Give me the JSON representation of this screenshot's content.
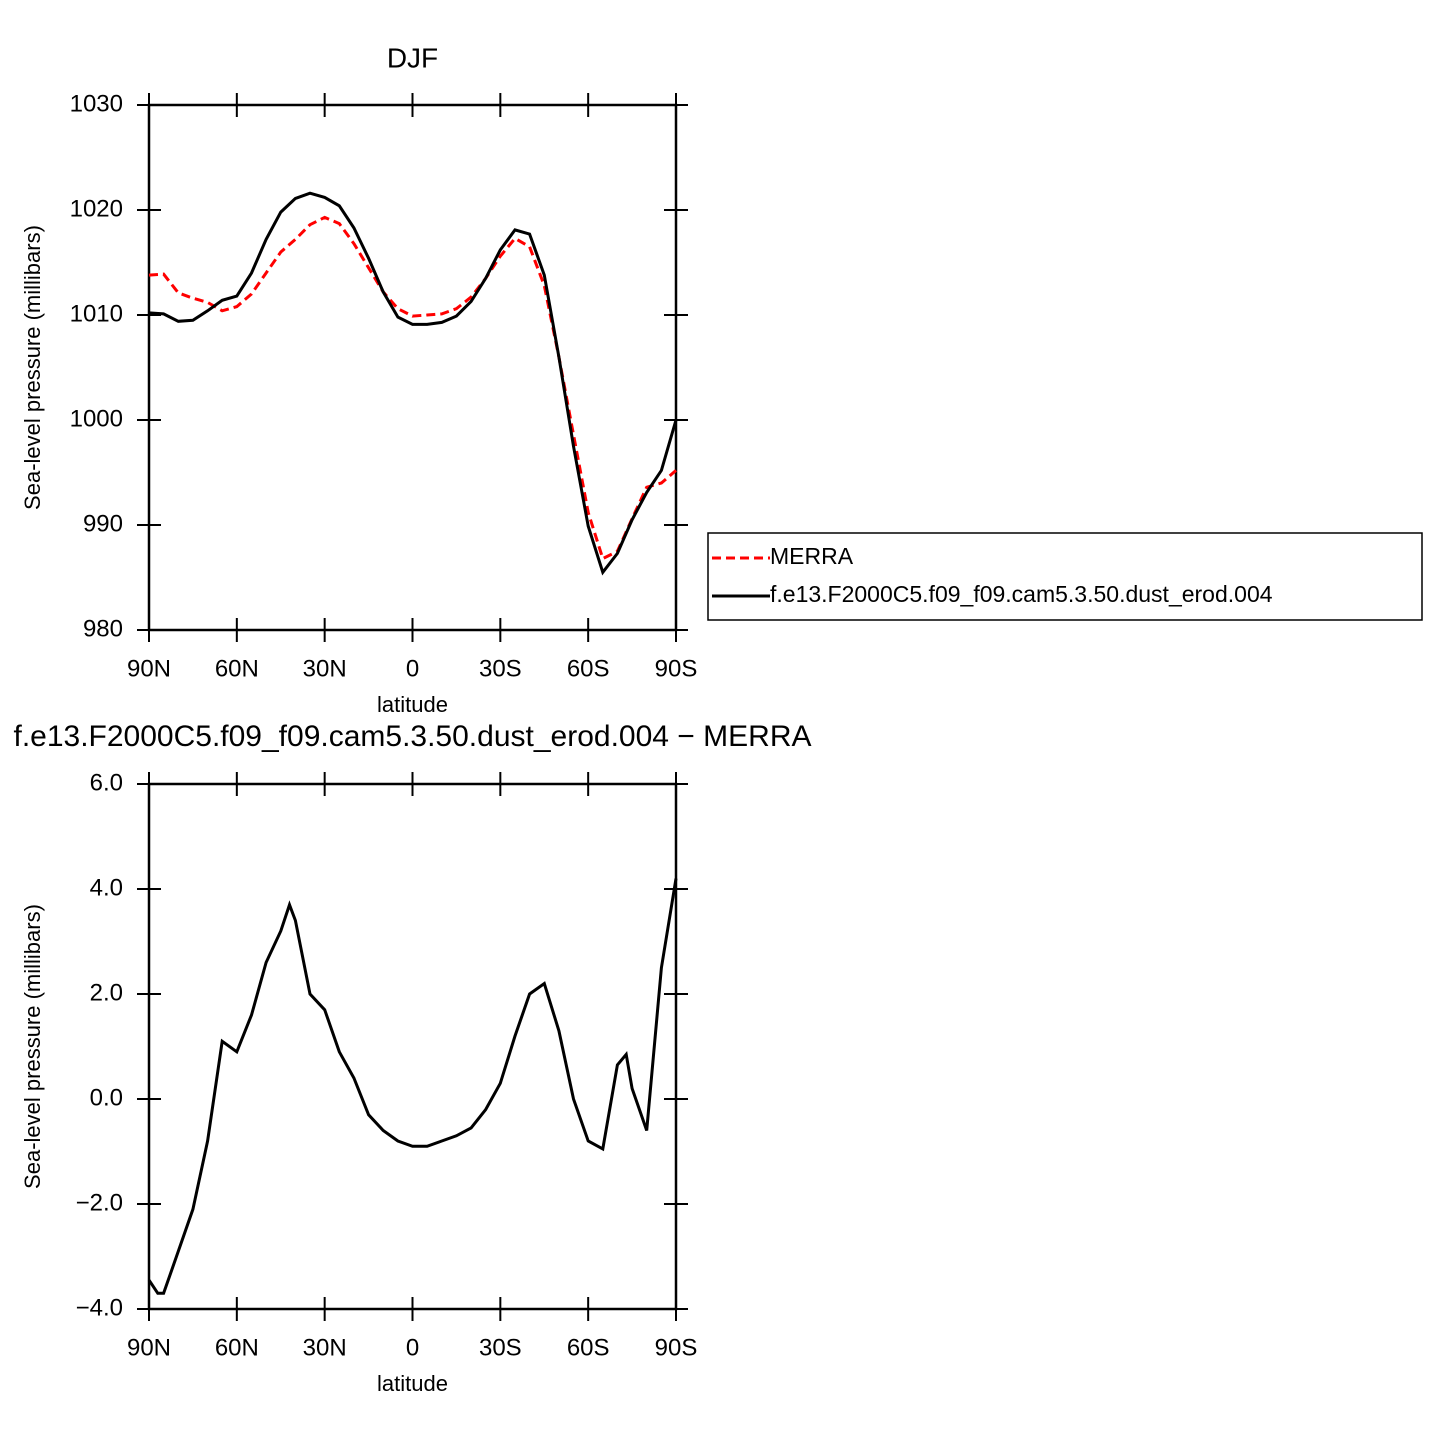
{
  "chart_data": [
    {
      "type": "line",
      "title": "DJF",
      "xlabel": "latitude",
      "ylabel": "Sea-level pressure (millibars)",
      "x": [
        90,
        85,
        80,
        75,
        70,
        65,
        60,
        55,
        50,
        45,
        40,
        35,
        30,
        25,
        20,
        15,
        10,
        5,
        0,
        -5,
        -10,
        -15,
        -20,
        -25,
        -30,
        -35,
        -40,
        -45,
        -50,
        -55,
        -60,
        -65,
        -70,
        -75,
        -80,
        -85,
        -90
      ],
      "series": [
        {
          "name": "MERRA",
          "color": "#ff0000",
          "style": "dashed",
          "values": [
            1013.8,
            1013.9,
            1012.1,
            1011.6,
            1011.2,
            1010.4,
            1010.8,
            1012.0,
            1014.0,
            1016.0,
            1017.2,
            1018.6,
            1019.3,
            1018.7,
            1016.8,
            1014.5,
            1012.2,
            1010.6,
            1009.9,
            1010.0,
            1010.1,
            1010.6,
            1011.7,
            1013.5,
            1015.6,
            1017.3,
            1016.5,
            1012.8,
            1006.0,
            998.6,
            991.2,
            986.8,
            987.5,
            990.6,
            993.6,
            994.0,
            995.2
          ]
        },
        {
          "name": "f.e13.F2000C5.f09_f09.cam5.3.50.dust_erod.004",
          "color": "#000000",
          "style": "solid",
          "values": [
            1010.2,
            1010.1,
            1009.4,
            1009.5,
            1010.4,
            1011.4,
            1011.8,
            1014.0,
            1017.2,
            1019.8,
            1021.1,
            1021.6,
            1021.2,
            1020.4,
            1018.3,
            1015.4,
            1012.2,
            1009.8,
            1009.1,
            1009.1,
            1009.3,
            1009.9,
            1011.3,
            1013.5,
            1016.2,
            1018.1,
            1017.7,
            1013.8,
            1006.0,
            997.5,
            989.9,
            985.5,
            987.3,
            990.5,
            993.1,
            995.2,
            1000.0
          ]
        }
      ],
      "xlim": [
        90,
        -90
      ],
      "xticks": [
        {
          "value": 90,
          "label": "90N"
        },
        {
          "value": 60,
          "label": "60N"
        },
        {
          "value": 30,
          "label": "30N"
        },
        0,
        {
          "value": -30,
          "label": "30S"
        },
        {
          "value": -60,
          "label": "60S"
        },
        {
          "value": -90,
          "label": "90S"
        }
      ],
      "ylim": [
        980,
        1030
      ],
      "yticks": [
        980,
        990,
        1000,
        1010,
        1020,
        1030
      ],
      "legend": "right"
    },
    {
      "type": "line",
      "title": "f.e13.F2000C5.f09_f09.cam5.3.50.dust_erod.004 − MERRA",
      "xlabel": "latitude",
      "ylabel": "Sea-level pressure (millibars)",
      "x": [
        90,
        87,
        85,
        80,
        75,
        70,
        65,
        60,
        55,
        50,
        45,
        42,
        40,
        35,
        30,
        25,
        20,
        15,
        10,
        5,
        0,
        -5,
        -10,
        -15,
        -20,
        -25,
        -30,
        -35,
        -40,
        -45,
        -50,
        -55,
        -60,
        -65,
        -70,
        -73,
        -75,
        -80,
        -85,
        -90
      ],
      "series": [
        {
          "color": "#000000",
          "style": "solid",
          "values": [
            -3.45,
            -3.7,
            -3.7,
            -2.9,
            -2.1,
            -0.8,
            1.1,
            0.9,
            1.6,
            2.6,
            3.2,
            3.7,
            3.4,
            2.0,
            1.7,
            0.9,
            0.4,
            -0.3,
            -0.6,
            -0.8,
            -0.9,
            -0.9,
            -0.8,
            -0.7,
            -0.55,
            -0.2,
            0.3,
            1.2,
            2.0,
            2.2,
            1.3,
            0.0,
            -0.8,
            -0.95,
            0.65,
            0.85,
            0.2,
            -0.6,
            2.5,
            4.2
          ]
        }
      ],
      "xlim": [
        90,
        -90
      ],
      "xticks": [
        {
          "value": 90,
          "label": "90N"
        },
        {
          "value": 60,
          "label": "60N"
        },
        {
          "value": 30,
          "label": "30N"
        },
        0,
        {
          "value": -30,
          "label": "30S"
        },
        {
          "value": -60,
          "label": "60S"
        },
        {
          "value": -90,
          "label": "90S"
        }
      ],
      "ylim": [
        -4,
        6
      ],
      "yticks": [
        {
          "value": -4,
          "label": "−4.0"
        },
        {
          "value": -2,
          "label": "−2.0"
        },
        {
          "value": 0,
          "label": "0.0"
        },
        {
          "value": 2,
          "label": "2.0"
        },
        {
          "value": 4,
          "label": "4.0"
        },
        {
          "value": 6,
          "label": "6.0"
        }
      ]
    }
  ]
}
